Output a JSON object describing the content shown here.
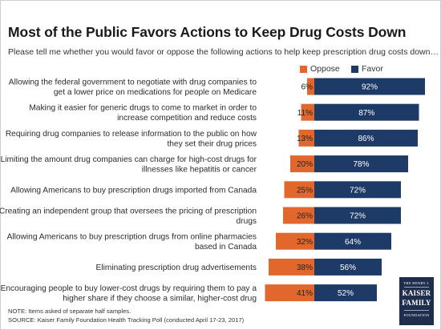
{
  "title": "Most of the Public Favors Actions to Keep Drug Costs Down",
  "subtitle": "Please tell me whether you would favor or oppose the following actions to help keep prescription drug costs down…",
  "legend": {
    "oppose": "Oppose",
    "favor": "Favor"
  },
  "notes": {
    "note": "NOTE: Items asked of separate half samples.",
    "source": "SOURCE: Kaiser Family Foundation Health Tracking Poll (conducted April 17-23, 2017)"
  },
  "logo": {
    "line1": "THE HENRY J.",
    "line2": "KAISER",
    "line3": "FAMILY",
    "line4": "FOUNDATION"
  },
  "colors": {
    "oppose": "#e2672d",
    "favor": "#1e3a66"
  },
  "chart_data": {
    "type": "bar",
    "orientation": "horizontal-diverging",
    "categories": [
      [
        "Allowing the federal government to negotiate with drug companies to",
        "get a lower price on medications for people on Medicare"
      ],
      [
        "Making it easier for generic drugs to come to market in order to",
        "increase competition and reduce costs"
      ],
      [
        "Requiring drug companies to release information to the public on how",
        "they set their drug prices"
      ],
      [
        "Limiting the amount drug companies can charge for high-cost drugs for",
        "illnesses like hepatitis or cancer"
      ],
      [
        "Allowing Americans to buy prescription drugs imported from Canada"
      ],
      [
        "Creating an independent group that oversees the pricing of prescription",
        "drugs"
      ],
      [
        "Allowing Americans to buy prescription drugs from online pharmacies",
        "based in Canada"
      ],
      [
        "Eliminating prescription drug advertisements"
      ],
      [
        "Encouraging people to buy lower-cost drugs by requiring them to pay a",
        "higher share if they choose a similar, higher-cost drug"
      ]
    ],
    "series": [
      {
        "name": "Oppose",
        "values": [
          6,
          11,
          13,
          20,
          25,
          26,
          32,
          38,
          41
        ],
        "labels": [
          "6%",
          "11%",
          "13%",
          "20%",
          "25%",
          "26%",
          "32%",
          "38%",
          "41%"
        ]
      },
      {
        "name": "Favor",
        "values": [
          92,
          87,
          86,
          78,
          72,
          72,
          64,
          56,
          52
        ],
        "labels": [
          "92%",
          "87%",
          "86%",
          "78%",
          "72%",
          "72%",
          "64%",
          "56%",
          "52%"
        ]
      }
    ],
    "unit": "%",
    "legend_position": "top-right",
    "grid": false
  }
}
